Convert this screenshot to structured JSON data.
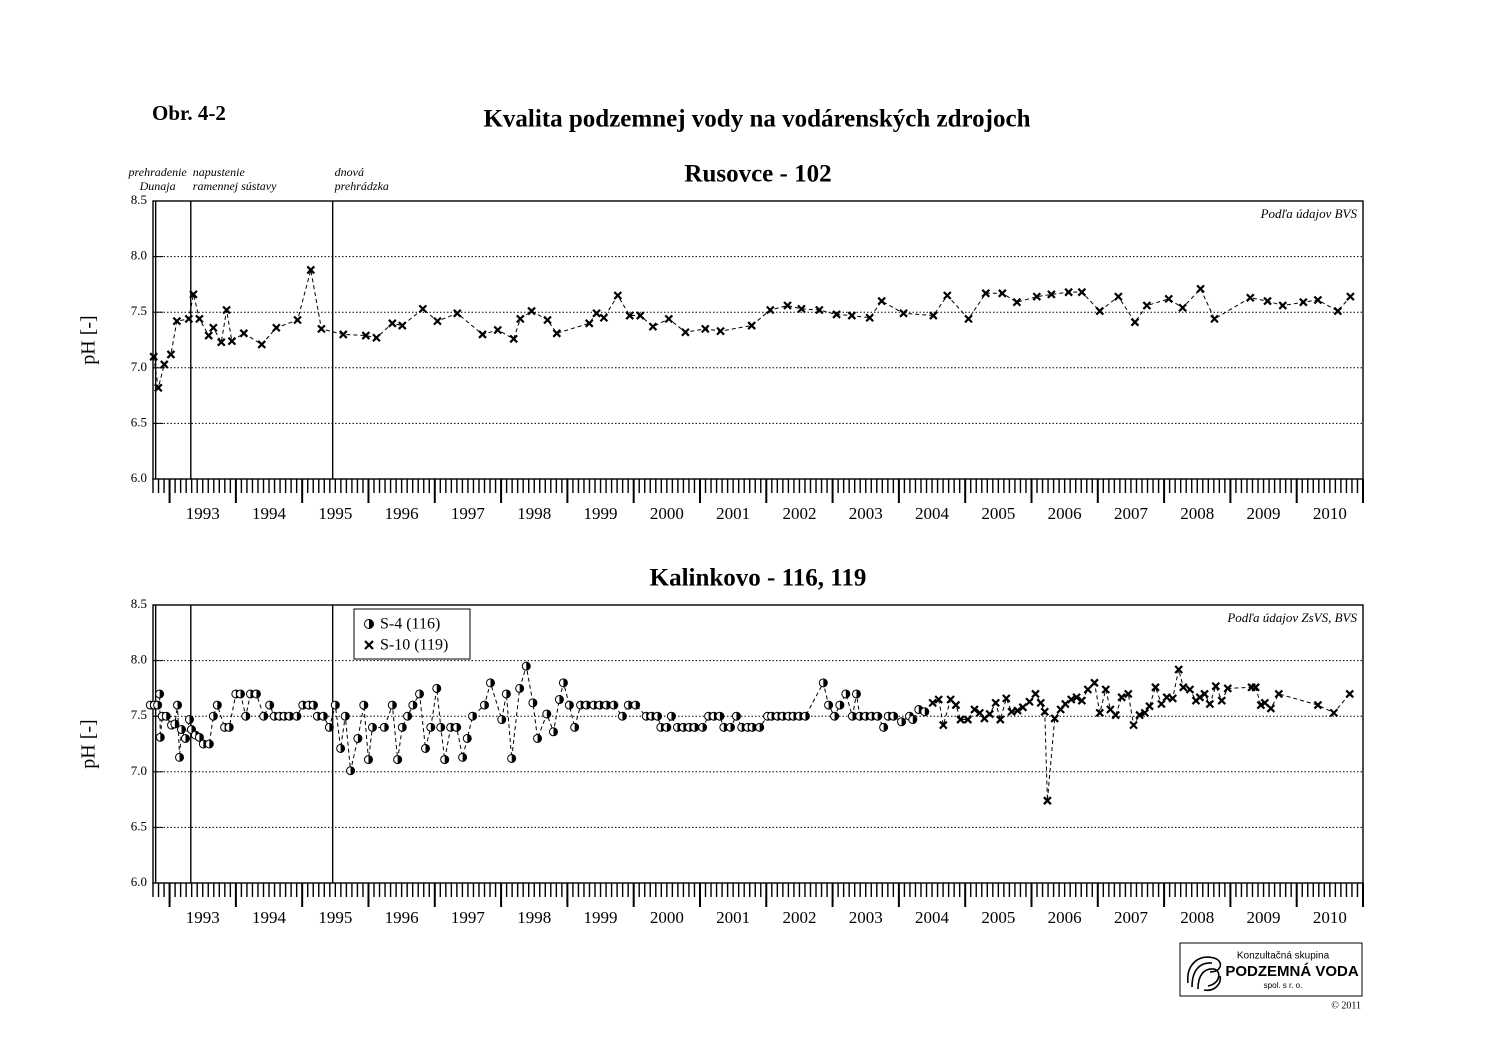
{
  "figure_label": "Obr. 4-2",
  "title": "Kvalita podzemnej vody na vodárenských zdrojoch",
  "logo": {
    "line1": "Konzultačná skupina",
    "line2": "PODZEMNÁ VODA",
    "line3": "spol. s r. o."
  },
  "copyright": "© 2011",
  "chart_data": [
    {
      "type": "line",
      "title": "Rusovce - 102",
      "ylabel": "pH [-]",
      "source": "Podľa údajov BVS",
      "marker": "x",
      "color": "#000000",
      "dashed": true,
      "grid": true,
      "xlim": [
        1992.75,
        2011
      ],
      "ylim": [
        6,
        8.5
      ],
      "yticks": [
        {
          "value": 6,
          "label": "6.0"
        },
        {
          "value": 6.5,
          "label": "6.5"
        },
        {
          "value": 7,
          "label": "7.0"
        },
        {
          "value": 7.5,
          "label": "7.5"
        },
        {
          "value": 8,
          "label": "8.0"
        },
        {
          "value": 8.5,
          "label": "8.5"
        }
      ],
      "xticks": [
        {
          "value": 1993.5,
          "label": "1993"
        },
        {
          "value": 1994.5,
          "label": "1994"
        },
        {
          "value": 1995.5,
          "label": "1995"
        },
        {
          "value": 1996.5,
          "label": "1996"
        },
        {
          "value": 1997.5,
          "label": "1997"
        },
        {
          "value": 1998.5,
          "label": "1998"
        },
        {
          "value": 1999.5,
          "label": "1999"
        },
        {
          "value": 2000.5,
          "label": "2000"
        },
        {
          "value": 2001.5,
          "label": "2001"
        },
        {
          "value": 2002.5,
          "label": "2002"
        },
        {
          "value": 2003.5,
          "label": "2003"
        },
        {
          "value": 2004.5,
          "label": "2004"
        },
        {
          "value": 2005.5,
          "label": "2005"
        },
        {
          "value": 2006.5,
          "label": "2006"
        },
        {
          "value": 2007.5,
          "label": "2007"
        },
        {
          "value": 2008.5,
          "label": "2008"
        },
        {
          "value": 2009.5,
          "label": "2009"
        },
        {
          "value": 2010.5,
          "label": "2010"
        }
      ],
      "events": [
        {
          "value": 1992.79,
          "label": [
            "prehradenie",
            "Dunaja"
          ]
        },
        {
          "value": 1993.32,
          "label": [
            "napustenie",
            "ramennej sústavy"
          ]
        },
        {
          "value": 1995.46,
          "label": [
            "dnová",
            "prehrádzka"
          ]
        }
      ],
      "x": [
        1992.76,
        1992.83,
        1992.92,
        1993.02,
        1993.11,
        1993.29,
        1993.36,
        1993.45,
        1993.59,
        1993.66,
        1993.78,
        1993.86,
        1993.94,
        1994.12,
        1994.39,
        1994.61,
        1994.93,
        1995.13,
        1995.29,
        1995.62,
        1995.96,
        1996.12,
        1996.36,
        1996.51,
        1996.82,
        1997.04,
        1997.34,
        1997.72,
        1997.95,
        1998.19,
        1998.29,
        1998.46,
        1998.7,
        1998.84,
        1999.33,
        1999.44,
        1999.55,
        1999.76,
        1999.94,
        2000.1,
        2000.29,
        2000.53,
        2000.78,
        2001.08,
        2001.31,
        2001.78,
        2002.06,
        2002.32,
        2002.53,
        2002.8,
        2003.06,
        2003.29,
        2003.56,
        2003.74,
        2004.07,
        2004.52,
        2004.73,
        2005.05,
        2005.31,
        2005.56,
        2005.78,
        2006.08,
        2006.3,
        2006.56,
        2006.76,
        2007.03,
        2007.31,
        2007.56,
        2007.74,
        2008.07,
        2008.28,
        2008.55,
        2008.76,
        2009.3,
        2009.56,
        2009.79,
        2010.1,
        2010.32,
        2010.62,
        2010.81
      ],
      "values": [
        7.1,
        6.82,
        7.03,
        7.12,
        7.42,
        7.44,
        7.66,
        7.44,
        7.29,
        7.36,
        7.23,
        7.52,
        7.24,
        7.31,
        7.21,
        7.36,
        7.43,
        7.88,
        7.35,
        7.3,
        7.29,
        7.27,
        7.4,
        7.38,
        7.53,
        7.42,
        7.49,
        7.3,
        7.34,
        7.26,
        7.44,
        7.51,
        7.43,
        7.31,
        7.4,
        7.49,
        7.45,
        7.65,
        7.47,
        7.47,
        7.37,
        7.44,
        7.32,
        7.35,
        7.33,
        7.38,
        7.52,
        7.56,
        7.53,
        7.52,
        7.48,
        7.47,
        7.45,
        7.6,
        7.49,
        7.47,
        7.65,
        7.44,
        7.67,
        7.67,
        7.59,
        7.64,
        7.66,
        7.68,
        7.68,
        7.51,
        7.64,
        7.41,
        7.56,
        7.62,
        7.54,
        7.71,
        7.44,
        7.63,
        7.6,
        7.56,
        7.59,
        7.61,
        7.51,
        7.64
      ]
    },
    {
      "type": "line",
      "title": "Kalinkovo - 116, 119",
      "ylabel": "pH [-]",
      "source": "Podľa údajov ZsVS, BVS",
      "dashed": true,
      "grid": true,
      "legend": "upper left",
      "xlim": [
        1992.75,
        2011
      ],
      "ylim": [
        6,
        8.5
      ],
      "yticks": [
        {
          "value": 6,
          "label": "6.0"
        },
        {
          "value": 6.5,
          "label": "6.5"
        },
        {
          "value": 7,
          "label": "7.0"
        },
        {
          "value": 7.5,
          "label": "7.5"
        },
        {
          "value": 8,
          "label": "8.0"
        },
        {
          "value": 8.5,
          "label": "8.5"
        }
      ],
      "xticks": [
        {
          "value": 1993.5,
          "label": "1993"
        },
        {
          "value": 1994.5,
          "label": "1994"
        },
        {
          "value": 1995.5,
          "label": "1995"
        },
        {
          "value": 1996.5,
          "label": "1996"
        },
        {
          "value": 1997.5,
          "label": "1997"
        },
        {
          "value": 1998.5,
          "label": "1998"
        },
        {
          "value": 1999.5,
          "label": "1999"
        },
        {
          "value": 2000.5,
          "label": "2000"
        },
        {
          "value": 2001.5,
          "label": "2001"
        },
        {
          "value": 2002.5,
          "label": "2002"
        },
        {
          "value": 2003.5,
          "label": "2003"
        },
        {
          "value": 2004.5,
          "label": "2004"
        },
        {
          "value": 2005.5,
          "label": "2005"
        },
        {
          "value": 2006.5,
          "label": "2006"
        },
        {
          "value": 2007.5,
          "label": "2007"
        },
        {
          "value": 2008.5,
          "label": "2008"
        },
        {
          "value": 2009.5,
          "label": "2009"
        },
        {
          "value": 2010.5,
          "label": "2010"
        }
      ],
      "events": [
        {
          "value": 1992.79
        },
        {
          "value": 1993.32
        },
        {
          "value": 1995.46
        }
      ],
      "series": [
        {
          "name": "S-4 (116)",
          "marker": "half-circle",
          "color": "#000000",
          "x": [
            1992.71,
            1992.77,
            1992.82,
            1992.85,
            1992.86,
            1992.89,
            1992.95,
            1993.03,
            1993.08,
            1993.12,
            1993.15,
            1993.18,
            1993.24,
            1993.3,
            1993.33,
            1993.39,
            1993.45,
            1993.51,
            1993.6,
            1993.66,
            1993.72,
            1993.83,
            1993.9,
            1994.0,
            1994.07,
            1994.15,
            1994.22,
            1994.31,
            1994.42,
            1994.51,
            1994.58,
            1994.66,
            1994.73,
            1994.81,
            1994.92,
            1995.01,
            1995.1,
            1995.17,
            1995.23,
            1995.32,
            1995.41,
            1995.5,
            1995.58,
            1995.65,
            1995.73,
            1995.84,
            1995.93,
            1996.0,
            1996.06,
            1996.24,
            1996.36,
            1996.44,
            1996.51,
            1996.59,
            1996.67,
            1996.77,
            1996.86,
            1996.94,
            1997.03,
            1997.09,
            1997.15,
            1997.24,
            1997.33,
            1997.42,
            1997.49,
            1997.57,
            1997.75,
            1997.84,
            1998.01,
            1998.08,
            1998.16,
            1998.28,
            1998.38,
            1998.48,
            1998.55,
            1998.69,
            1998.79,
            1998.88,
            1998.94,
            1999.03,
            1999.11,
            1999.2,
            1999.29,
            1999.4,
            1999.49,
            1999.59,
            1999.7,
            1999.83,
            1999.92,
            2000.03,
            2000.19,
            2000.27,
            2000.36,
            2000.41,
            2000.5,
            2000.57,
            2000.66,
            2000.75,
            2000.84,
            2000.92,
            2001.04,
            2001.13,
            2001.21,
            2001.3,
            2001.36,
            2001.46,
            2001.55,
            2001.63,
            2001.72,
            2001.79,
            2001.9,
            2002.02,
            2002.08,
            2002.17,
            2002.25,
            2002.34,
            2002.41,
            2002.5,
            2002.59,
            2002.86,
            2002.94,
            2003.03,
            2003.11,
            2003.2,
            2003.3,
            2003.36,
            2003.41,
            2003.5,
            2003.59,
            2003.68,
            2003.77,
            2003.84,
            2003.92,
            2004.04,
            2004.16,
            2004.21,
            2004.3,
            2004.39
          ],
          "values": [
            7.6,
            7.6,
            7.6,
            7.7,
            7.31,
            7.5,
            7.5,
            7.42,
            7.43,
            7.6,
            7.13,
            7.38,
            7.3,
            7.47,
            7.38,
            7.33,
            7.31,
            7.25,
            7.25,
            7.5,
            7.6,
            7.4,
            7.4,
            7.7,
            7.7,
            7.5,
            7.7,
            7.7,
            7.5,
            7.6,
            7.5,
            7.5,
            7.5,
            7.5,
            7.5,
            7.6,
            7.6,
            7.6,
            7.5,
            7.5,
            7.4,
            7.6,
            7.21,
            7.5,
            7.01,
            7.3,
            7.6,
            7.11,
            7.4,
            7.4,
            7.6,
            7.11,
            7.4,
            7.5,
            7.6,
            7.7,
            7.21,
            7.4,
            7.75,
            7.4,
            7.11,
            7.4,
            7.4,
            7.13,
            7.3,
            7.5,
            7.6,
            7.8,
            7.47,
            7.7,
            7.12,
            7.75,
            7.95,
            7.62,
            7.3,
            7.52,
            7.36,
            7.65,
            7.8,
            7.6,
            7.4,
            7.6,
            7.6,
            7.6,
            7.6,
            7.6,
            7.6,
            7.5,
            7.6,
            7.6,
            7.5,
            7.5,
            7.5,
            7.4,
            7.4,
            7.5,
            7.4,
            7.4,
            7.4,
            7.4,
            7.4,
            7.5,
            7.5,
            7.5,
            7.4,
            7.4,
            7.5,
            7.4,
            7.4,
            7.4,
            7.4,
            7.5,
            7.5,
            7.5,
            7.5,
            7.5,
            7.5,
            7.5,
            7.5,
            7.8,
            7.6,
            7.5,
            7.6,
            7.7,
            7.5,
            7.7,
            7.5,
            7.5,
            7.5,
            7.5,
            7.4,
            7.5,
            7.5,
            7.45,
            7.5,
            7.47,
            7.56,
            7.54
          ]
        },
        {
          "name": "S-10 (119)",
          "marker": "x",
          "color": "#000000",
          "x": [
            2004.51,
            2004.6,
            2004.67,
            2004.78,
            2004.86,
            2004.93,
            2005.04,
            2005.14,
            2005.22,
            2005.29,
            2005.37,
            2005.46,
            2005.53,
            2005.62,
            2005.7,
            2005.79,
            2005.87,
            2005.97,
            2006.06,
            2006.14,
            2006.2,
            2006.24,
            2006.35,
            2006.44,
            2006.51,
            2006.6,
            2006.68,
            2006.76,
            2006.85,
            2006.95,
            2007.03,
            2007.12,
            2007.19,
            2007.27,
            2007.36,
            2007.46,
            2007.54,
            2007.63,
            2007.71,
            2007.78,
            2007.87,
            2007.96,
            2008.04,
            2008.13,
            2008.22,
            2008.29,
            2008.39,
            2008.48,
            2008.54,
            2008.61,
            2008.69,
            2008.78,
            2008.87,
            2008.96,
            2009.32,
            2009.38,
            2009.46,
            2009.52,
            2009.61,
            2009.73,
            2010.32,
            2010.56,
            2010.8
          ],
          "values": [
            7.62,
            7.65,
            7.42,
            7.65,
            7.6,
            7.47,
            7.47,
            7.56,
            7.53,
            7.48,
            7.52,
            7.62,
            7.47,
            7.66,
            7.54,
            7.55,
            7.58,
            7.63,
            7.7,
            7.62,
            7.54,
            6.74,
            7.48,
            7.56,
            7.61,
            7.65,
            7.67,
            7.64,
            7.74,
            7.8,
            7.53,
            7.74,
            7.56,
            7.51,
            7.67,
            7.7,
            7.42,
            7.51,
            7.53,
            7.59,
            7.76,
            7.61,
            7.67,
            7.66,
            7.92,
            7.76,
            7.74,
            7.64,
            7.67,
            7.7,
            7.61,
            7.77,
            7.64,
            7.75,
            7.76,
            7.76,
            7.6,
            7.62,
            7.57,
            7.7,
            7.6,
            7.53,
            7.7
          ]
        }
      ]
    }
  ]
}
